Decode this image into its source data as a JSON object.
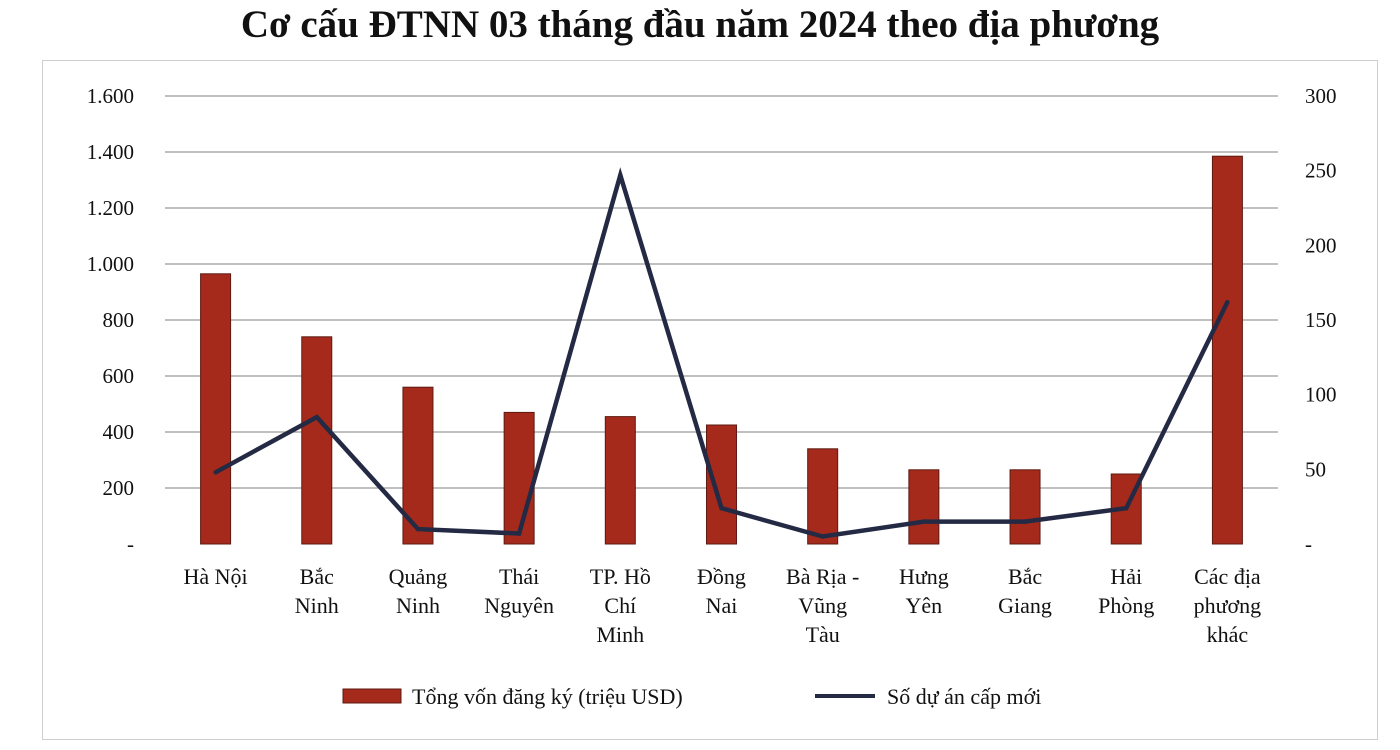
{
  "title": "Cơ cấu ĐTNN 03 tháng đầu năm 2024 theo địa phương",
  "colors": {
    "bar": "#a52a1c",
    "bar_edge": "#5e1a12",
    "line": "#252a44",
    "grid": "#9a9a9a"
  },
  "chart_data": {
    "type": "bar+line",
    "categories": [
      [
        "Hà Nội"
      ],
      [
        "Bắc",
        "Ninh"
      ],
      [
        "Quảng",
        "Ninh"
      ],
      [
        "Thái",
        "Nguyên"
      ],
      [
        "TP. Hồ",
        "Chí",
        "Minh"
      ],
      [
        "Đồng",
        "Nai"
      ],
      [
        "Bà Rịa -",
        "Vũng",
        "Tàu"
      ],
      [
        "Hưng",
        "Yên"
      ],
      [
        "Bắc",
        "Giang"
      ],
      [
        "Hải",
        "Phòng"
      ],
      [
        "Các địa",
        "phương",
        "khác"
      ]
    ],
    "series": [
      {
        "name": "Tổng vốn đăng ký (triệu USD)",
        "type": "bar",
        "axis": "left",
        "values": [
          965,
          740,
          560,
          470,
          455,
          425,
          340,
          265,
          265,
          250,
          1385
        ]
      },
      {
        "name": "Số dự án cấp mới",
        "type": "line",
        "axis": "right",
        "values": [
          48,
          85,
          10,
          7,
          247,
          24,
          5,
          15,
          15,
          24,
          162
        ]
      }
    ],
    "y_left": {
      "min": 0,
      "max": 1600,
      "ticks": [
        "-",
        "200",
        "400",
        "600",
        "800",
        "1.000",
        "1.200",
        "1.400",
        "1.600"
      ]
    },
    "y_right": {
      "min": 0,
      "max": 300,
      "ticks": [
        "-",
        "50",
        "100",
        "150",
        "200",
        "250",
        "300"
      ]
    },
    "grid": true,
    "legend": "bottom"
  }
}
